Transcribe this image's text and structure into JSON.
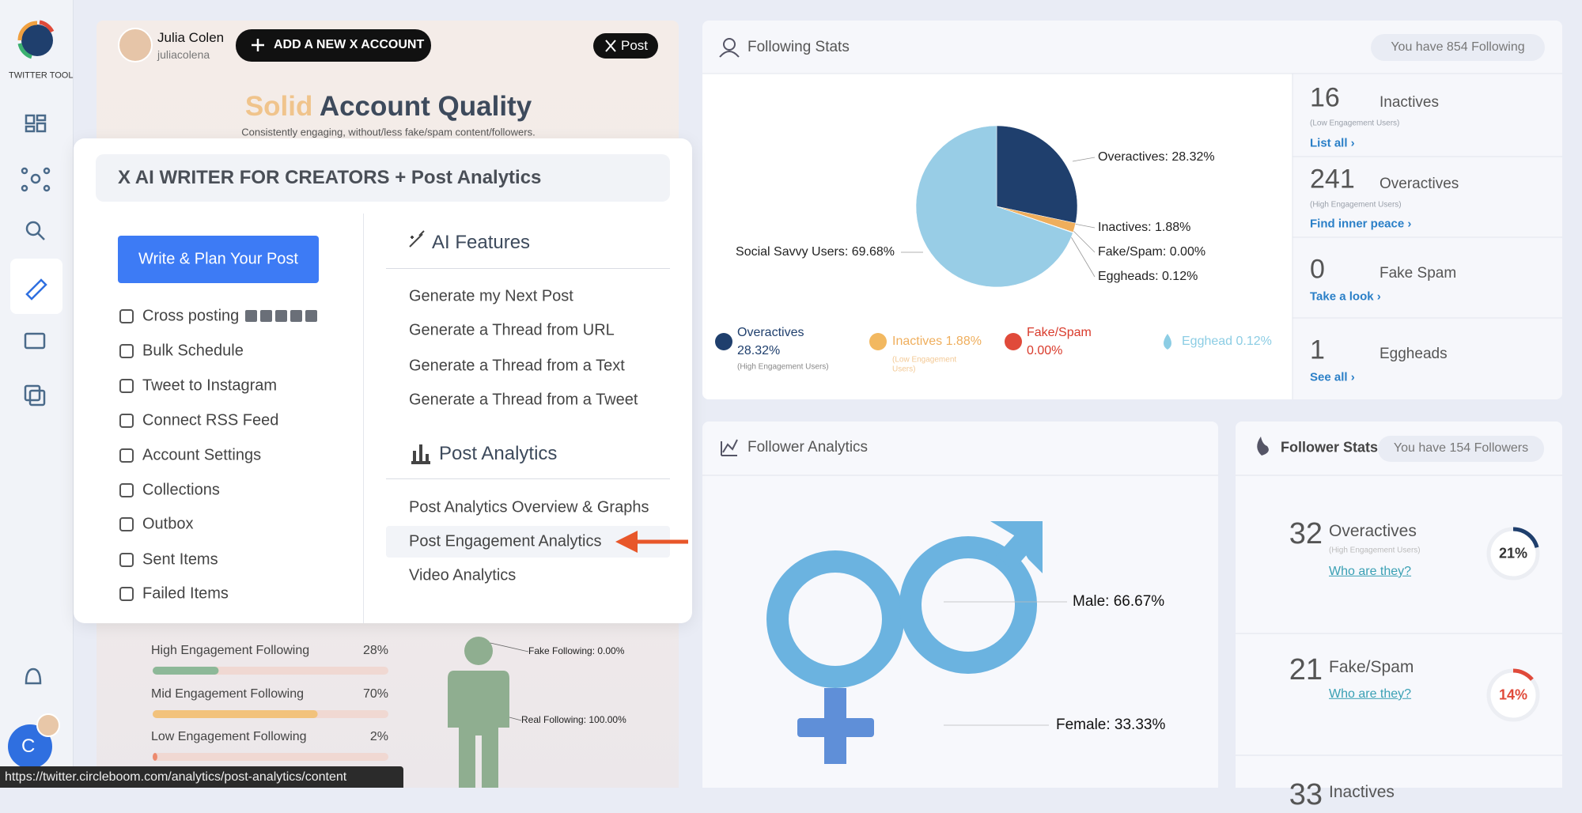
{
  "sidebar": {
    "brand": "TWITTER TOOL"
  },
  "header": {
    "user_name": "Julia Colen",
    "user_handle": "juliacolena",
    "add_account": "ADD A NEW X ACCOUNT",
    "post_button": "Post"
  },
  "quality": {
    "title_highlight": "Solid",
    "title_rest": "Account Quality",
    "subtitle": "Consistently engaging, without/less fake/spam content/followers."
  },
  "menu": {
    "title": "X AI WRITER FOR CREATORS + Post Analytics",
    "write_button": "Write & Plan Your Post",
    "items": [
      "Cross posting",
      "Bulk Schedule",
      "Tweet to Instagram",
      "Connect RSS Feed",
      "Account Settings",
      "Collections",
      "Outbox",
      "Sent Items",
      "Failed Items"
    ],
    "ai_features": {
      "heading": "AI Features",
      "items": [
        "Generate my Next Post",
        "Generate a Thread from URL",
        "Generate a Thread from a Text",
        "Generate a Thread from a Tweet"
      ]
    },
    "post_analytics": {
      "heading": "Post Analytics",
      "items": [
        "Post Analytics Overview & Graphs",
        "Post Engagement Analytics",
        "Video Analytics"
      ]
    }
  },
  "engagement": [
    {
      "label": "High Engagement Following",
      "value": 28,
      "value_label": "28%",
      "color": "#8db898"
    },
    {
      "label": "Mid Engagement Following",
      "value": 70,
      "value_label": "70%",
      "color": "#f2c27c"
    },
    {
      "label": "Low Engagement Following",
      "value": 2,
      "value_label": "2%",
      "color": "#ec8a6e"
    }
  ],
  "figure": {
    "fake": "Fake Following: 0.00%",
    "real": "Real Following: 100.00%"
  },
  "following_stats": {
    "title": "Following Stats",
    "badge": "You have 854 Following",
    "pie": {
      "slices": [
        {
          "label": "Overactives: 28.32%",
          "value": 28.32,
          "color": "#1f3f6d"
        },
        {
          "label": "Inactives: 1.88%",
          "value": 1.88,
          "color": "#efae5c"
        },
        {
          "label": "Fake/Spam: 0.00%",
          "value": 0,
          "color": "#e04a3a"
        },
        {
          "label": "Eggheads: 0.12%",
          "value": 0.12,
          "color": "#cfe6f2"
        },
        {
          "label": "Social Savvy Users: 69.68%",
          "value": 69.68,
          "color": "#98cde6"
        }
      ]
    },
    "legend": [
      {
        "name": "Overactives",
        "value": "28.32%",
        "sub": "(High Engagement Users)"
      },
      {
        "name": "Inactives 1.88%",
        "sub": "(Low Engagement Users)"
      },
      {
        "name": "Fake/Spam",
        "value": "0.00%"
      },
      {
        "name": "Egghead 0.12%"
      }
    ],
    "summary": [
      {
        "count": "16",
        "label": "Inactives",
        "sub": "(Low Engagement Users)",
        "link": "List all ›"
      },
      {
        "count": "241",
        "label": "Overactives",
        "sub": "(High Engagement Users)",
        "link": "Find inner peace ›"
      },
      {
        "count": "0",
        "label": "Fake Spam",
        "link": "Take a look ›"
      },
      {
        "count": "1",
        "label": "Eggheads",
        "link": "See all ›"
      }
    ]
  },
  "follower_analytics": {
    "title": "Follower Analytics",
    "male": "Male: 66.67%",
    "female": "Female: 33.33%"
  },
  "follower_stats": {
    "title": "Follower Stats",
    "badge": "You have 154 Followers",
    "rows": [
      {
        "count": "32",
        "label": "Overactives",
        "sub": "(High Engagement Users)",
        "link": "Who are they?",
        "percent": 21,
        "percent_label": "21%",
        "color": "#1f3f6d"
      },
      {
        "count": "21",
        "label": "Fake/Spam",
        "link": "Who are they?",
        "percent": 14,
        "percent_label": "14%",
        "color": "#e04a3a"
      },
      {
        "count": "33",
        "label": "Inactives"
      }
    ]
  },
  "status_bar": {
    "url": "https://twitter.circleboom.com/analytics/post-analytics/content"
  }
}
